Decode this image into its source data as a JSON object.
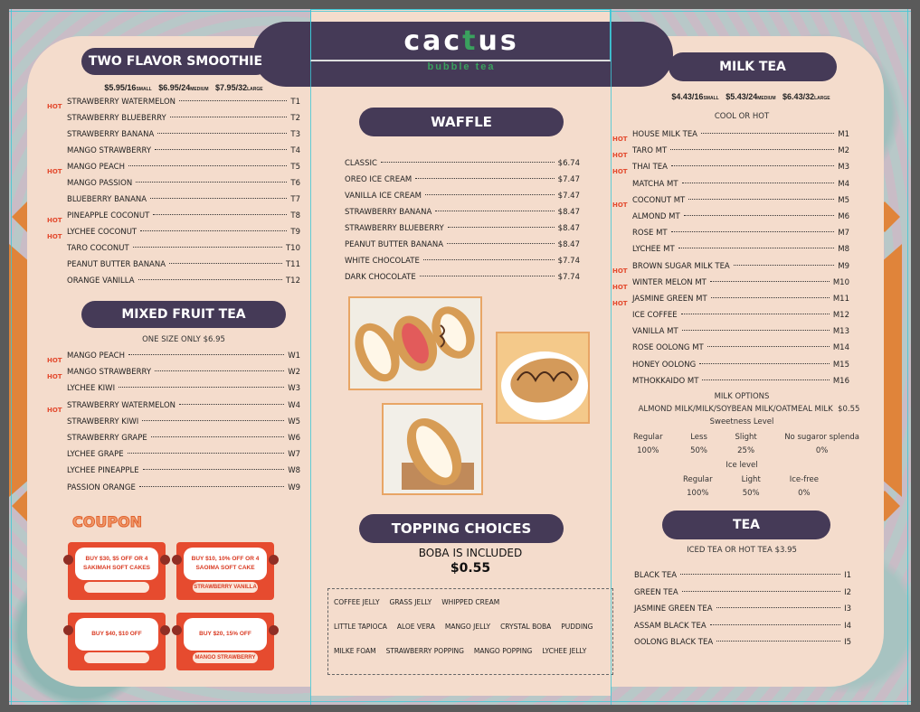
{
  "logo": {
    "text_before": "cac",
    "text_after": "us",
    "accent_glyph": "t",
    "tagline": "bubble tea",
    "accent_color": "#3aa15e"
  },
  "smoothie": {
    "title": "TWO FLAVOR SMOOTHIE",
    "prices": [
      {
        "price": "$5.95/16",
        "size": "SMALL"
      },
      {
        "price": "$6.95/24",
        "size": "MEDIUM"
      },
      {
        "price": "$7.95/32",
        "size": "LARGE"
      }
    ],
    "items": [
      {
        "name": "STRAWBERRY WATERMELON",
        "code": "T1",
        "hot": true
      },
      {
        "name": "STRAWBERRY BLUEBERRY",
        "code": "T2",
        "hot": false
      },
      {
        "name": "STRAWBERRY BANANA",
        "code": "T3",
        "hot": false
      },
      {
        "name": "MANGO STRAWBERRY",
        "code": "T4",
        "hot": false
      },
      {
        "name": "MANGO PEACH",
        "code": "T5",
        "hot": true
      },
      {
        "name": "MANGO PASSION",
        "code": "T6",
        "hot": false
      },
      {
        "name": "BLUEBERRY BANANA",
        "code": "T7",
        "hot": false
      },
      {
        "name": "PINEAPPLE COCONUT",
        "code": "T8",
        "hot": true
      },
      {
        "name": "LYCHEE COCONUT",
        "code": "T9",
        "hot": true
      },
      {
        "name": "TARO COCONUT",
        "code": "T10",
        "hot": false
      },
      {
        "name": "PEANUT BUTTER BANANA",
        "code": "T11",
        "hot": false
      },
      {
        "name": "ORANGE VANILLA",
        "code": "T12",
        "hot": false
      }
    ]
  },
  "fruit_tea": {
    "title": "MIXED FRUIT TEA",
    "subtitle": "ONE SIZE ONLY $6.95",
    "items": [
      {
        "name": "MANGO PEACH",
        "code": "W1",
        "hot": true
      },
      {
        "name": "MANGO STRAWBERRY",
        "code": "W2",
        "hot": true
      },
      {
        "name": "LYCHEE KIWI",
        "code": "W3",
        "hot": false
      },
      {
        "name": "STRAWBERRY WATERMELON",
        "code": "W4",
        "hot": true
      },
      {
        "name": "STRAWBERRY KIWI",
        "code": "W5",
        "hot": false
      },
      {
        "name": "STRAWBERRY GRAPE",
        "code": "W6",
        "hot": false
      },
      {
        "name": "LYCHEE GRAPE",
        "code": "W7",
        "hot": false
      },
      {
        "name": "LYCHEE PINEAPPLE",
        "code": "W8",
        "hot": false
      },
      {
        "name": "PASSION ORANGE",
        "code": "W9",
        "hot": false
      }
    ]
  },
  "coupon": {
    "title": "COUPON",
    "cards": [
      {
        "text": "BUY $30, $5 OFF OR 4 SAKIMAH SOFT CAKES",
        "footer": ""
      },
      {
        "text": "BUY $10, 10% OFF OR 4 SAOIMA SOFT CAKE",
        "footer": "STRAWBERRY VANILLA"
      },
      {
        "text": "BUY $40, $10 OFF",
        "footer": ""
      },
      {
        "text": "BUY $20, 15% OFF",
        "footer": "MANGO STRAWBERRY"
      }
    ]
  },
  "waffle": {
    "title": "WAFFLE",
    "items": [
      {
        "name": "CLASSIC",
        "price": "$6.74"
      },
      {
        "name": "OREO ICE CREAM",
        "price": "$7.47"
      },
      {
        "name": "VANILLA ICE CREAM",
        "price": "$7.47"
      },
      {
        "name": "STRAWBERRY BANANA",
        "price": "$8.47"
      },
      {
        "name": "STRAWBERRY BLUEBERRY",
        "price": "$8.47"
      },
      {
        "name": "PEANUT BUTTER BANANA",
        "price": "$8.47"
      },
      {
        "name": "WHITE CHOCOLATE",
        "price": "$7.74"
      },
      {
        "name": "DARK CHOCOLATE",
        "price": "$7.74"
      }
    ]
  },
  "toppings": {
    "title": "TOPPING CHOICES",
    "subtitle": "BOBA IS INCLUDED",
    "price": "$0.55",
    "rows": [
      [
        "COFFEE JELLY",
        "GRASS JELLY",
        "WHIPPED CREAM"
      ],
      [
        "LITTLE TAPIOCA",
        "ALOE VERA",
        "MANGO JELLY",
        "CRYSTAL BOBA",
        "PUDDING"
      ],
      [
        "MILKE FOAM",
        "STRAWBERRY POPPING",
        "MANGO POPPING",
        "LYCHEE JELLY"
      ]
    ]
  },
  "milk_tea": {
    "title": "MILK TEA",
    "prices": [
      {
        "price": "$4.43/16",
        "size": "SMALL"
      },
      {
        "price": "$5.43/24",
        "size": "MEDIUM"
      },
      {
        "price": "$6.43/32",
        "size": "LARGE"
      }
    ],
    "temp": "COOL OR HOT",
    "items": [
      {
        "name": "HOUSE MILK TEA",
        "code": "M1",
        "hot": true
      },
      {
        "name": "TARO MT",
        "code": "M2",
        "hot": true
      },
      {
        "name": "THAI TEA",
        "code": "M3",
        "hot": true
      },
      {
        "name": "MATCHA MT",
        "code": "M4",
        "hot": false
      },
      {
        "name": "COCONUT MT",
        "code": "M5",
        "hot": true
      },
      {
        "name": "ALMOND MT",
        "code": "M6",
        "hot": false
      },
      {
        "name": "ROSE MT",
        "code": "M7",
        "hot": false
      },
      {
        "name": "LYCHEE MT",
        "code": "M8",
        "hot": false
      },
      {
        "name": "BROWN SUGAR MILK TEA",
        "code": "M9",
        "hot": true
      },
      {
        "name": "WINTER MELON MT",
        "code": "M10",
        "hot": true
      },
      {
        "name": "JASMINE GREEN MT",
        "code": "M11",
        "hot": true
      },
      {
        "name": "ICE COFFEE",
        "code": "M12",
        "hot": false
      },
      {
        "name": "VANILLA MT",
        "code": "M13",
        "hot": false
      },
      {
        "name": "ROSE OOLONG MT",
        "code": "M14",
        "hot": false
      },
      {
        "name": "HONEY OOLONG",
        "code": "M15",
        "hot": false
      },
      {
        "name": "MTHOKKAIDO MT",
        "code": "M16",
        "hot": false
      }
    ],
    "milk_options_title": "MILK OPTIONS",
    "milk_options": "ALMOND MILK/MILK/SOYBEAN MILK/OATMEAL MILK",
    "milk_options_price": "$0.55",
    "sweetness_title": "Sweetness Level",
    "sweetness": [
      {
        "label": "Regular",
        "value": "100%"
      },
      {
        "label": "Less",
        "value": "50%"
      },
      {
        "label": "Slight",
        "value": "25%"
      },
      {
        "label": "No sugaror splenda",
        "value": "0%"
      }
    ],
    "ice_title": "Ice level",
    "ice": [
      {
        "label": "Regular",
        "value": "100%"
      },
      {
        "label": "Light",
        "value": "50%"
      },
      {
        "label": "Ice-free",
        "value": "0%"
      }
    ]
  },
  "tea": {
    "title": "TEA",
    "subtitle": "ICED TEA OR HOT TEA $3.95",
    "items": [
      {
        "name": "BLACK TEA",
        "code": "I1"
      },
      {
        "name": "GREEN TEA",
        "code": "I2"
      },
      {
        "name": "JASMINE GREEN TEA",
        "code": "I3"
      },
      {
        "name": "ASSAM BLACK TEA",
        "code": "I4"
      },
      {
        "name": "OOLONG BLACK TEA",
        "code": "I5"
      }
    ]
  },
  "hot_badge": "HOT",
  "colors": {
    "panel": "#f4dccc",
    "header": "#453a57",
    "accent_orange": "#e0843a",
    "coupon_red": "#e64b2f"
  }
}
